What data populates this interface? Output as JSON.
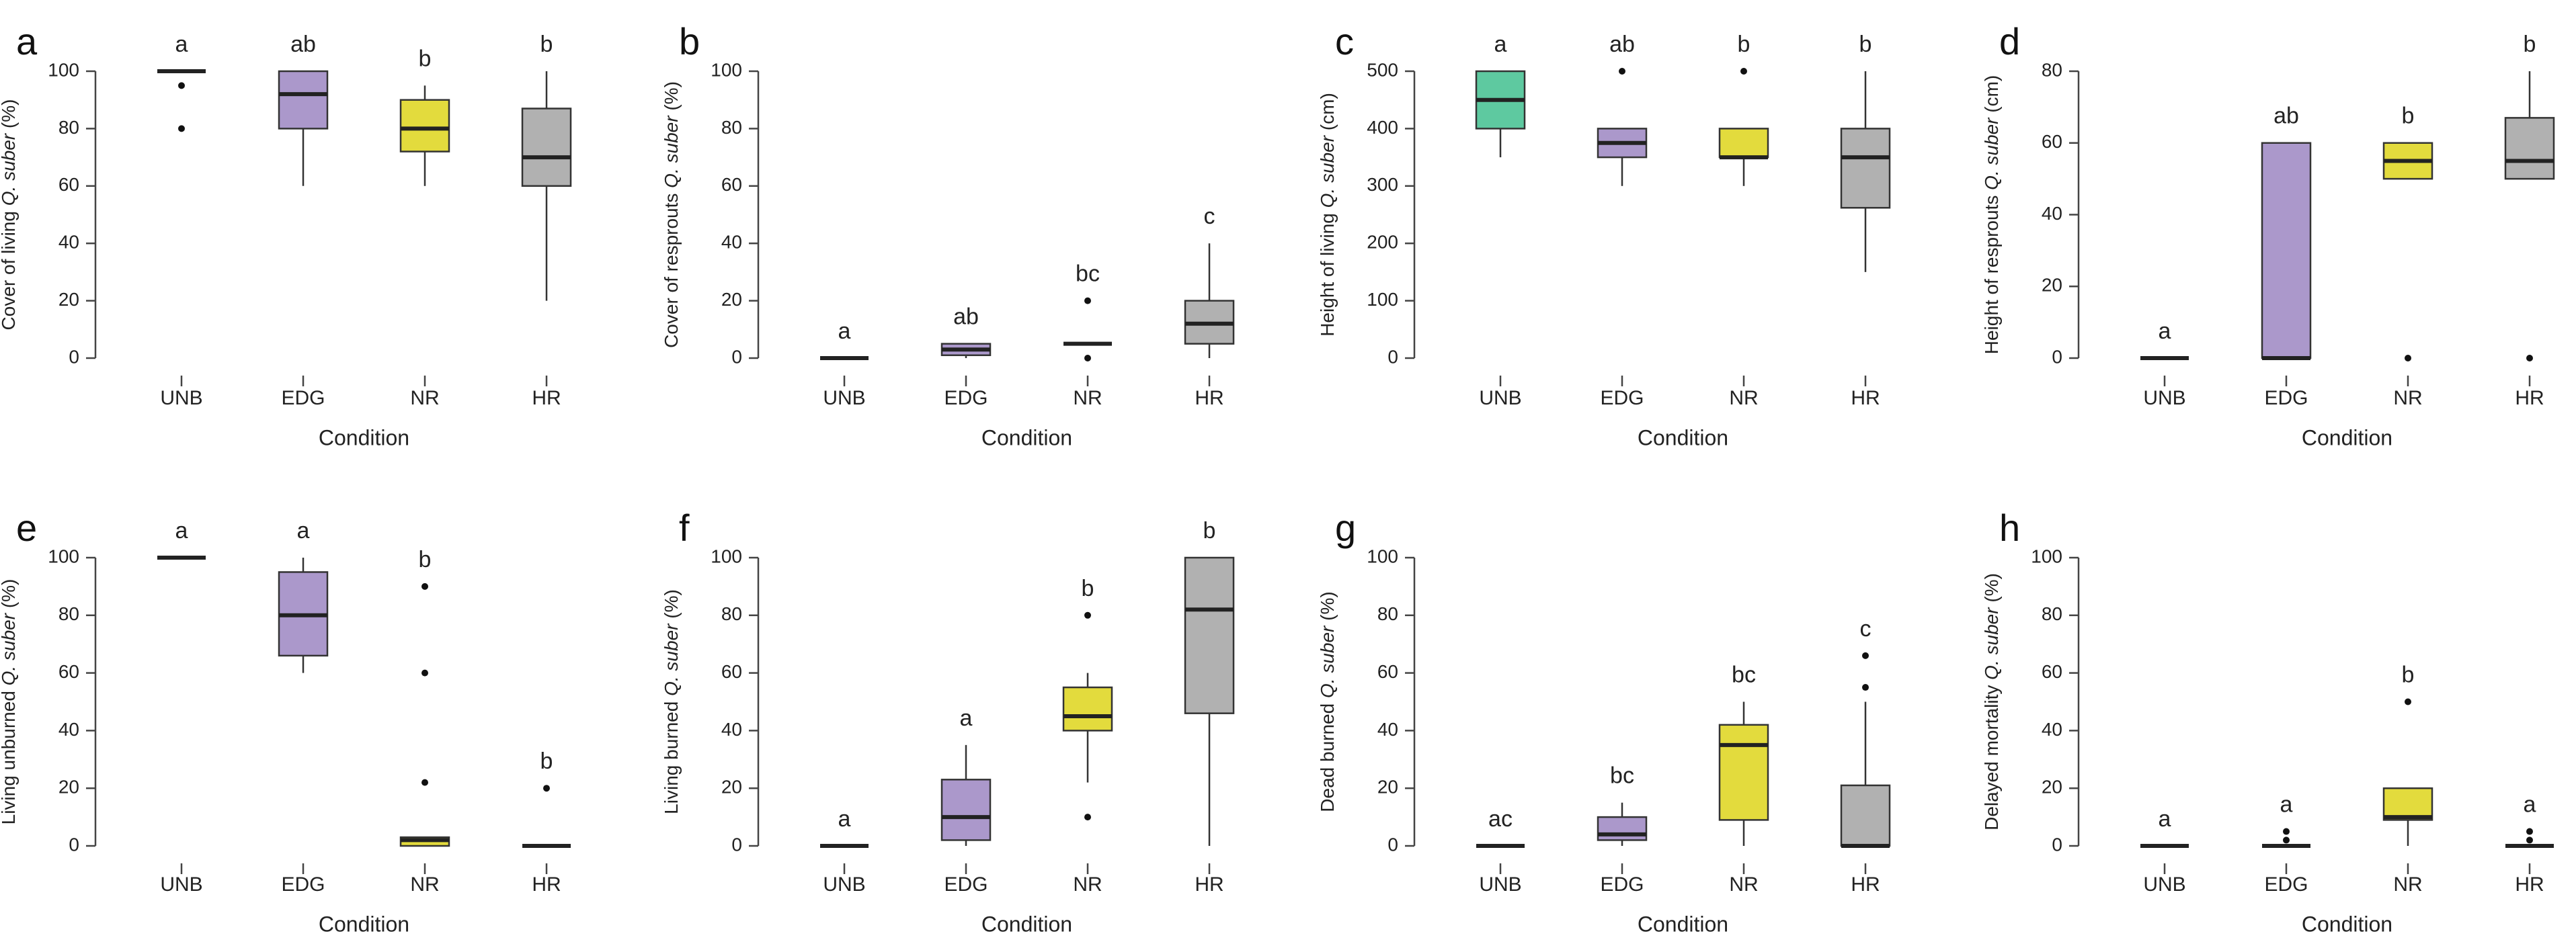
{
  "colors": {
    "UNB": "#5ec9a0",
    "EDG": "#ab98cb",
    "NR": "#e3db3d",
    "HR": "#b1b1b1"
  },
  "chart_data": [
    {
      "id": "a",
      "letter": "a",
      "type": "box",
      "xlabel": "Condition",
      "ylabel_pre": "Cover of living ",
      "ylabel_ital": "Q. suber",
      "ylabel_post": " (%)",
      "ylim": [
        0,
        100
      ],
      "yticks": [
        0,
        20,
        40,
        60,
        80,
        100
      ],
      "categories": [
        "UNB",
        "EDG",
        "NR",
        "HR"
      ],
      "boxes": [
        {
          "cat": "UNB",
          "min": 100,
          "q1": 100,
          "median": 100,
          "q3": 100,
          "max": 100,
          "outliers": [
            95,
            80
          ],
          "sig": "a"
        },
        {
          "cat": "EDG",
          "min": 60,
          "q1": 80,
          "median": 92,
          "q3": 100,
          "max": 100,
          "outliers": [],
          "sig": "ab"
        },
        {
          "cat": "NR",
          "min": 60,
          "q1": 72,
          "median": 80,
          "q3": 90,
          "max": 95,
          "outliers": [],
          "sig": "b"
        },
        {
          "cat": "HR",
          "min": 20,
          "q1": 60,
          "median": 70,
          "q3": 87,
          "max": 100,
          "outliers": [],
          "sig": "b"
        }
      ]
    },
    {
      "id": "b",
      "letter": "b",
      "type": "box",
      "xlabel": "Condition",
      "ylabel_pre": "Cover of resprouts ",
      "ylabel_ital": "Q. suber",
      "ylabel_post": " (%)",
      "ylim": [
        0,
        100
      ],
      "yticks": [
        0,
        20,
        40,
        60,
        80,
        100
      ],
      "categories": [
        "UNB",
        "EDG",
        "NR",
        "HR"
      ],
      "boxes": [
        {
          "cat": "UNB",
          "min": 0,
          "q1": 0,
          "median": 0,
          "q3": 0,
          "max": 0,
          "outliers": [],
          "sig": "a"
        },
        {
          "cat": "EDG",
          "min": 0,
          "q1": 1,
          "median": 3,
          "q3": 5,
          "max": 5,
          "outliers": [],
          "sig": "ab"
        },
        {
          "cat": "NR",
          "min": 5,
          "q1": 5,
          "median": 5,
          "q3": 5,
          "max": 5,
          "outliers": [
            20,
            0
          ],
          "sig": "bc"
        },
        {
          "cat": "HR",
          "min": 0,
          "q1": 5,
          "median": 12,
          "q3": 20,
          "max": 40,
          "outliers": [],
          "sig": "c"
        }
      ]
    },
    {
      "id": "c",
      "letter": "c",
      "type": "box",
      "xlabel": "Condition",
      "ylabel_pre": "Height of living ",
      "ylabel_ital": "Q. suber",
      "ylabel_post": " (cm)",
      "ylim": [
        0,
        500
      ],
      "yticks": [
        0,
        100,
        200,
        300,
        400,
        500
      ],
      "categories": [
        "UNB",
        "EDG",
        "NR",
        "HR"
      ],
      "boxes": [
        {
          "cat": "UNB",
          "min": 350,
          "q1": 400,
          "median": 450,
          "q3": 500,
          "max": 500,
          "outliers": [],
          "sig": "a"
        },
        {
          "cat": "EDG",
          "min": 300,
          "q1": 350,
          "median": 375,
          "q3": 400,
          "max": 400,
          "outliers": [
            500
          ],
          "sig": "ab"
        },
        {
          "cat": "NR",
          "min": 300,
          "q1": 350,
          "median": 350,
          "q3": 400,
          "max": 400,
          "outliers": [
            500
          ],
          "sig": "b"
        },
        {
          "cat": "HR",
          "min": 150,
          "q1": 262,
          "median": 350,
          "q3": 400,
          "max": 500,
          "outliers": [],
          "sig": "b"
        }
      ]
    },
    {
      "id": "d",
      "letter": "d",
      "type": "box",
      "xlabel": "Condition",
      "ylabel_pre": "Height of resprouts ",
      "ylabel_ital": "Q. suber",
      "ylabel_post": " (cm)",
      "ylim": [
        0,
        80
      ],
      "yticks": [
        0,
        20,
        40,
        60,
        80
      ],
      "categories": [
        "UNB",
        "EDG",
        "NR",
        "HR"
      ],
      "boxes": [
        {
          "cat": "UNB",
          "min": 0,
          "q1": 0,
          "median": 0,
          "q3": 0,
          "max": 0,
          "outliers": [],
          "sig": "a"
        },
        {
          "cat": "EDG",
          "min": 0,
          "q1": 0,
          "median": 0,
          "q3": 60,
          "max": 60,
          "outliers": [],
          "sig": "ab"
        },
        {
          "cat": "NR",
          "min": 50,
          "q1": 50,
          "median": 55,
          "q3": 60,
          "max": 60,
          "outliers": [
            0
          ],
          "sig": "b"
        },
        {
          "cat": "HR",
          "min": 50,
          "q1": 50,
          "median": 55,
          "q3": 67,
          "max": 80,
          "outliers": [
            0
          ],
          "sig": "b"
        }
      ]
    },
    {
      "id": "e",
      "letter": "e",
      "type": "box",
      "xlabel": "Condition",
      "ylabel_pre": "Living unburned ",
      "ylabel_ital": "Q. suber",
      "ylabel_post": " (%)",
      "ylim": [
        0,
        100
      ],
      "yticks": [
        0,
        20,
        40,
        60,
        80,
        100
      ],
      "categories": [
        "UNB",
        "EDG",
        "NR",
        "HR"
      ],
      "boxes": [
        {
          "cat": "UNB",
          "min": 100,
          "q1": 100,
          "median": 100,
          "q3": 100,
          "max": 100,
          "outliers": [],
          "sig": "a"
        },
        {
          "cat": "EDG",
          "min": 60,
          "q1": 66,
          "median": 80,
          "q3": 95,
          "max": 100,
          "outliers": [],
          "sig": "a"
        },
        {
          "cat": "NR",
          "min": 0,
          "q1": 0,
          "median": 2,
          "q3": 3,
          "max": 3,
          "outliers": [
            90,
            60,
            22
          ],
          "sig": "b"
        },
        {
          "cat": "HR",
          "min": 0,
          "q1": 0,
          "median": 0,
          "q3": 0,
          "max": 0,
          "outliers": [
            20
          ],
          "sig": "b"
        }
      ]
    },
    {
      "id": "f",
      "letter": "f",
      "type": "box",
      "xlabel": "Condition",
      "ylabel_pre": "Living burned ",
      "ylabel_ital": "Q. suber",
      "ylabel_post": " (%)",
      "ylim": [
        0,
        100
      ],
      "yticks": [
        0,
        20,
        40,
        60,
        80,
        100
      ],
      "categories": [
        "UNB",
        "EDG",
        "NR",
        "HR"
      ],
      "boxes": [
        {
          "cat": "UNB",
          "min": 0,
          "q1": 0,
          "median": 0,
          "q3": 0,
          "max": 0,
          "outliers": [],
          "sig": "a"
        },
        {
          "cat": "EDG",
          "min": 0,
          "q1": 2,
          "median": 10,
          "q3": 23,
          "max": 35,
          "outliers": [],
          "sig": "a"
        },
        {
          "cat": "NR",
          "min": 22,
          "q1": 40,
          "median": 45,
          "q3": 55,
          "max": 60,
          "outliers": [
            80,
            10
          ],
          "sig": "b"
        },
        {
          "cat": "HR",
          "min": 0,
          "q1": 46,
          "median": 82,
          "q3": 100,
          "max": 100,
          "outliers": [],
          "sig": "b"
        }
      ]
    },
    {
      "id": "g",
      "letter": "g",
      "type": "box",
      "xlabel": "Condition",
      "ylabel_pre": "Dead burned ",
      "ylabel_ital": "Q. suber",
      "ylabel_post": " (%)",
      "ylim": [
        0,
        100
      ],
      "yticks": [
        0,
        20,
        40,
        60,
        80,
        100
      ],
      "categories": [
        "UNB",
        "EDG",
        "NR",
        "HR"
      ],
      "boxes": [
        {
          "cat": "UNB",
          "min": 0,
          "q1": 0,
          "median": 0,
          "q3": 0,
          "max": 0,
          "outliers": [],
          "sig": "ac"
        },
        {
          "cat": "EDG",
          "min": 0,
          "q1": 2,
          "median": 4,
          "q3": 10,
          "max": 15,
          "outliers": [],
          "sig": "bc"
        },
        {
          "cat": "NR",
          "min": 0,
          "q1": 9,
          "median": 35,
          "q3": 42,
          "max": 50,
          "outliers": [],
          "sig": "bc"
        },
        {
          "cat": "HR",
          "min": 0,
          "q1": 0,
          "median": 0,
          "q3": 21,
          "max": 50,
          "outliers": [
            66,
            55
          ],
          "sig": "c"
        }
      ]
    },
    {
      "id": "h",
      "letter": "h",
      "type": "box",
      "xlabel": "Condition",
      "ylabel_pre": "Delayed mortality ",
      "ylabel_ital": "Q. suber",
      "ylabel_post": " (%)",
      "ylim": [
        0,
        100
      ],
      "yticks": [
        0,
        20,
        40,
        60,
        80,
        100
      ],
      "categories": [
        "UNB",
        "EDG",
        "NR",
        "HR"
      ],
      "boxes": [
        {
          "cat": "UNB",
          "min": 0,
          "q1": 0,
          "median": 0,
          "q3": 0,
          "max": 0,
          "outliers": [],
          "sig": "a"
        },
        {
          "cat": "EDG",
          "min": 0,
          "q1": 0,
          "median": 0,
          "q3": 0,
          "max": 0,
          "outliers": [
            5,
            2
          ],
          "sig": "a"
        },
        {
          "cat": "NR",
          "min": 0,
          "q1": 9,
          "median": 10,
          "q3": 20,
          "max": 20,
          "outliers": [
            50
          ],
          "sig": "b"
        },
        {
          "cat": "HR",
          "min": 0,
          "q1": 0,
          "median": 0,
          "q3": 0,
          "max": 0,
          "outliers": [
            5,
            2
          ],
          "sig": "a"
        }
      ]
    }
  ]
}
